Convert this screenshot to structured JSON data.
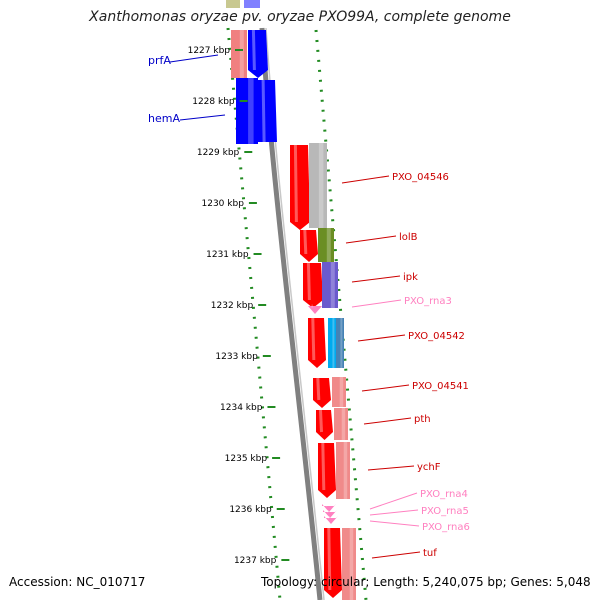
{
  "title": "Xanthomonas oryzae pv. oryzae PXO99A, complete genome",
  "footer": {
    "accession": "Accession: NC_010717",
    "summary": "Topology: circular; Length: 5,240,075 bp; Genes: 5,048"
  },
  "colors": {
    "cds": "#ff0000",
    "cds_light": "#f08a8a",
    "gene_blue": "#0000ff",
    "rna": "#ff80c0",
    "tick": "#228b22",
    "backbone": "#808080",
    "label_blue": "#0000c8",
    "label_red": "#cc0000",
    "label_pink": "#ff80c0"
  },
  "ticks": [
    {
      "label": "1227 kbp"
    },
    {
      "label": "1228 kbp"
    },
    {
      "label": "1229 kbp"
    },
    {
      "label": "1230 kbp"
    },
    {
      "label": "1231 kbp"
    },
    {
      "label": "1232 kbp"
    },
    {
      "label": "1233 kbp"
    },
    {
      "label": "1234 kbp"
    },
    {
      "label": "1235 kbp"
    },
    {
      "label": "1236 kbp"
    },
    {
      "label": "1237 kbp"
    }
  ],
  "gene_labels": {
    "left": [
      {
        "name": "prfA",
        "color": "#0000c8"
      },
      {
        "name": "hemA",
        "color": "#0000c8"
      }
    ],
    "right": [
      {
        "name": "PXO_04546",
        "color": "#cc0000"
      },
      {
        "name": "lolB",
        "color": "#cc0000"
      },
      {
        "name": "ipk",
        "color": "#cc0000"
      },
      {
        "name": "PXO_rna3",
        "color": "#ff80c0"
      },
      {
        "name": "PXO_04542",
        "color": "#cc0000"
      },
      {
        "name": "PXO_04541",
        "color": "#cc0000"
      },
      {
        "name": "pth",
        "color": "#cc0000"
      },
      {
        "name": "ychF",
        "color": "#cc0000"
      },
      {
        "name": "PXO_rna4",
        "color": "#ff80c0"
      },
      {
        "name": "PXO_rna5",
        "color": "#ff80c0"
      },
      {
        "name": "PXO_rna6",
        "color": "#ff80c0"
      },
      {
        "name": "tuf",
        "color": "#cc0000"
      }
    ]
  }
}
